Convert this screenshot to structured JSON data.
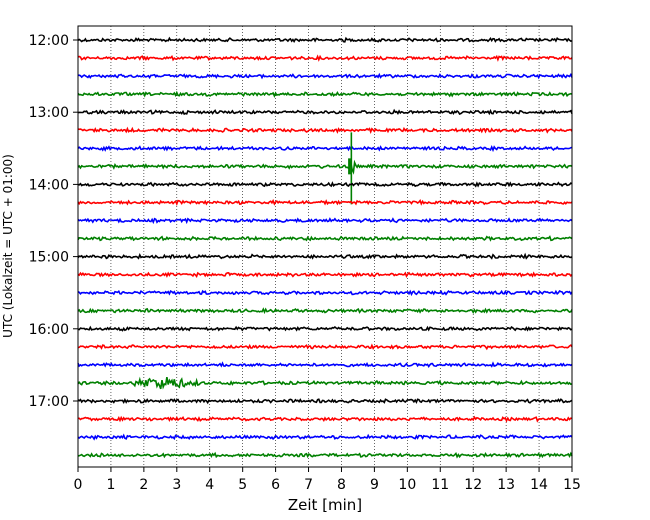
{
  "chart_data": {
    "type": "line",
    "chart_kind": "helicorder seismogram",
    "title": "",
    "xlabel": "Zeit  [min]",
    "ylabel": "UTC (Lokalzeit = UTC + 01:00)",
    "xlim": [
      0,
      15
    ],
    "x_ticks": [
      "0",
      "1",
      "2",
      "3",
      "4",
      "5",
      "6",
      "7",
      "8",
      "9",
      "10",
      "11",
      "12",
      "13",
      "14",
      "15"
    ],
    "y_ticks": [
      "12:00",
      "13:00",
      "14:00",
      "15:00",
      "16:00",
      "17:00"
    ],
    "time_range": [
      "12:00",
      "18:00"
    ],
    "trace_interval_min": 15,
    "vertical_grid": "dotted",
    "trace_colors": [
      "#000000",
      "#ff0000",
      "#0000ff",
      "#008000"
    ],
    "rows": [
      {
        "start": "12:00",
        "color": "#000000"
      },
      {
        "start": "12:15",
        "color": "#ff0000"
      },
      {
        "start": "12:30",
        "color": "#0000ff"
      },
      {
        "start": "12:45",
        "color": "#008000"
      },
      {
        "start": "13:00",
        "color": "#000000"
      },
      {
        "start": "13:15",
        "color": "#ff0000"
      },
      {
        "start": "13:30",
        "color": "#0000ff"
      },
      {
        "start": "13:45",
        "color": "#008000"
      },
      {
        "start": "14:00",
        "color": "#000000"
      },
      {
        "start": "14:15",
        "color": "#ff0000"
      },
      {
        "start": "14:30",
        "color": "#0000ff"
      },
      {
        "start": "14:45",
        "color": "#008000"
      },
      {
        "start": "15:00",
        "color": "#000000"
      },
      {
        "start": "15:15",
        "color": "#ff0000"
      },
      {
        "start": "15:30",
        "color": "#0000ff"
      },
      {
        "start": "15:45",
        "color": "#008000"
      },
      {
        "start": "16:00",
        "color": "#000000"
      },
      {
        "start": "16:15",
        "color": "#ff0000"
      },
      {
        "start": "16:30",
        "color": "#0000ff"
      },
      {
        "start": "16:45",
        "color": "#008000"
      },
      {
        "start": "17:00",
        "color": "#000000"
      },
      {
        "start": "17:15",
        "color": "#ff0000"
      },
      {
        "start": "17:30",
        "color": "#0000ff"
      },
      {
        "start": "17:45",
        "color": "#008000"
      }
    ],
    "events": [
      {
        "row": "13:45",
        "time_min": 8.3,
        "type": "spike",
        "color": "#008000"
      },
      {
        "row": "16:45",
        "time_min": [
          1.7,
          3.9
        ],
        "type": "burst",
        "color": "#008000"
      }
    ]
  }
}
